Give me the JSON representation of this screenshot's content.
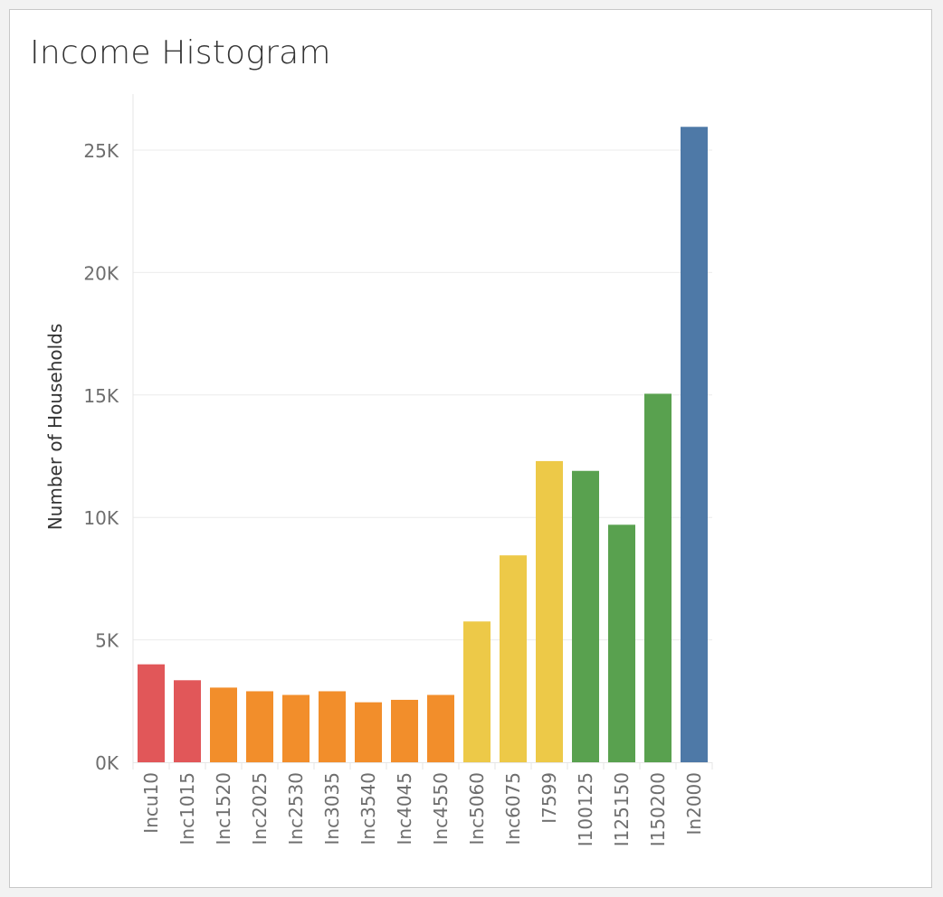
{
  "title": "Income Histogram",
  "chart_data": {
    "type": "bar",
    "title": "Income Histogram",
    "xlabel": "",
    "ylabel": "Number of Households",
    "ylim": [
      0,
      26000
    ],
    "yticks": [
      0,
      5000,
      10000,
      15000,
      20000,
      25000
    ],
    "ytick_labels": [
      "0K",
      "5K",
      "10K",
      "15K",
      "20K",
      "25K"
    ],
    "grid": true,
    "categories": [
      "Incu10",
      "Inc1015",
      "Inc1520",
      "Inc2025",
      "Inc2530",
      "Inc3035",
      "Inc3540",
      "Inc4045",
      "Inc4550",
      "Inc5060",
      "Inc6075",
      "I7599",
      "I100125",
      "I125150",
      "I150200",
      "In2000"
    ],
    "values": [
      4000,
      3350,
      3050,
      2900,
      2750,
      2900,
      2450,
      2550,
      2750,
      5750,
      8450,
      12300,
      11900,
      9700,
      15050,
      25950
    ],
    "colors": [
      "#e15759",
      "#e15759",
      "#f28e2b",
      "#f28e2b",
      "#f28e2b",
      "#f28e2b",
      "#f28e2b",
      "#f28e2b",
      "#f28e2b",
      "#edc948",
      "#edc948",
      "#edc948",
      "#59a14f",
      "#59a14f",
      "#59a14f",
      "#4e79a7"
    ]
  }
}
